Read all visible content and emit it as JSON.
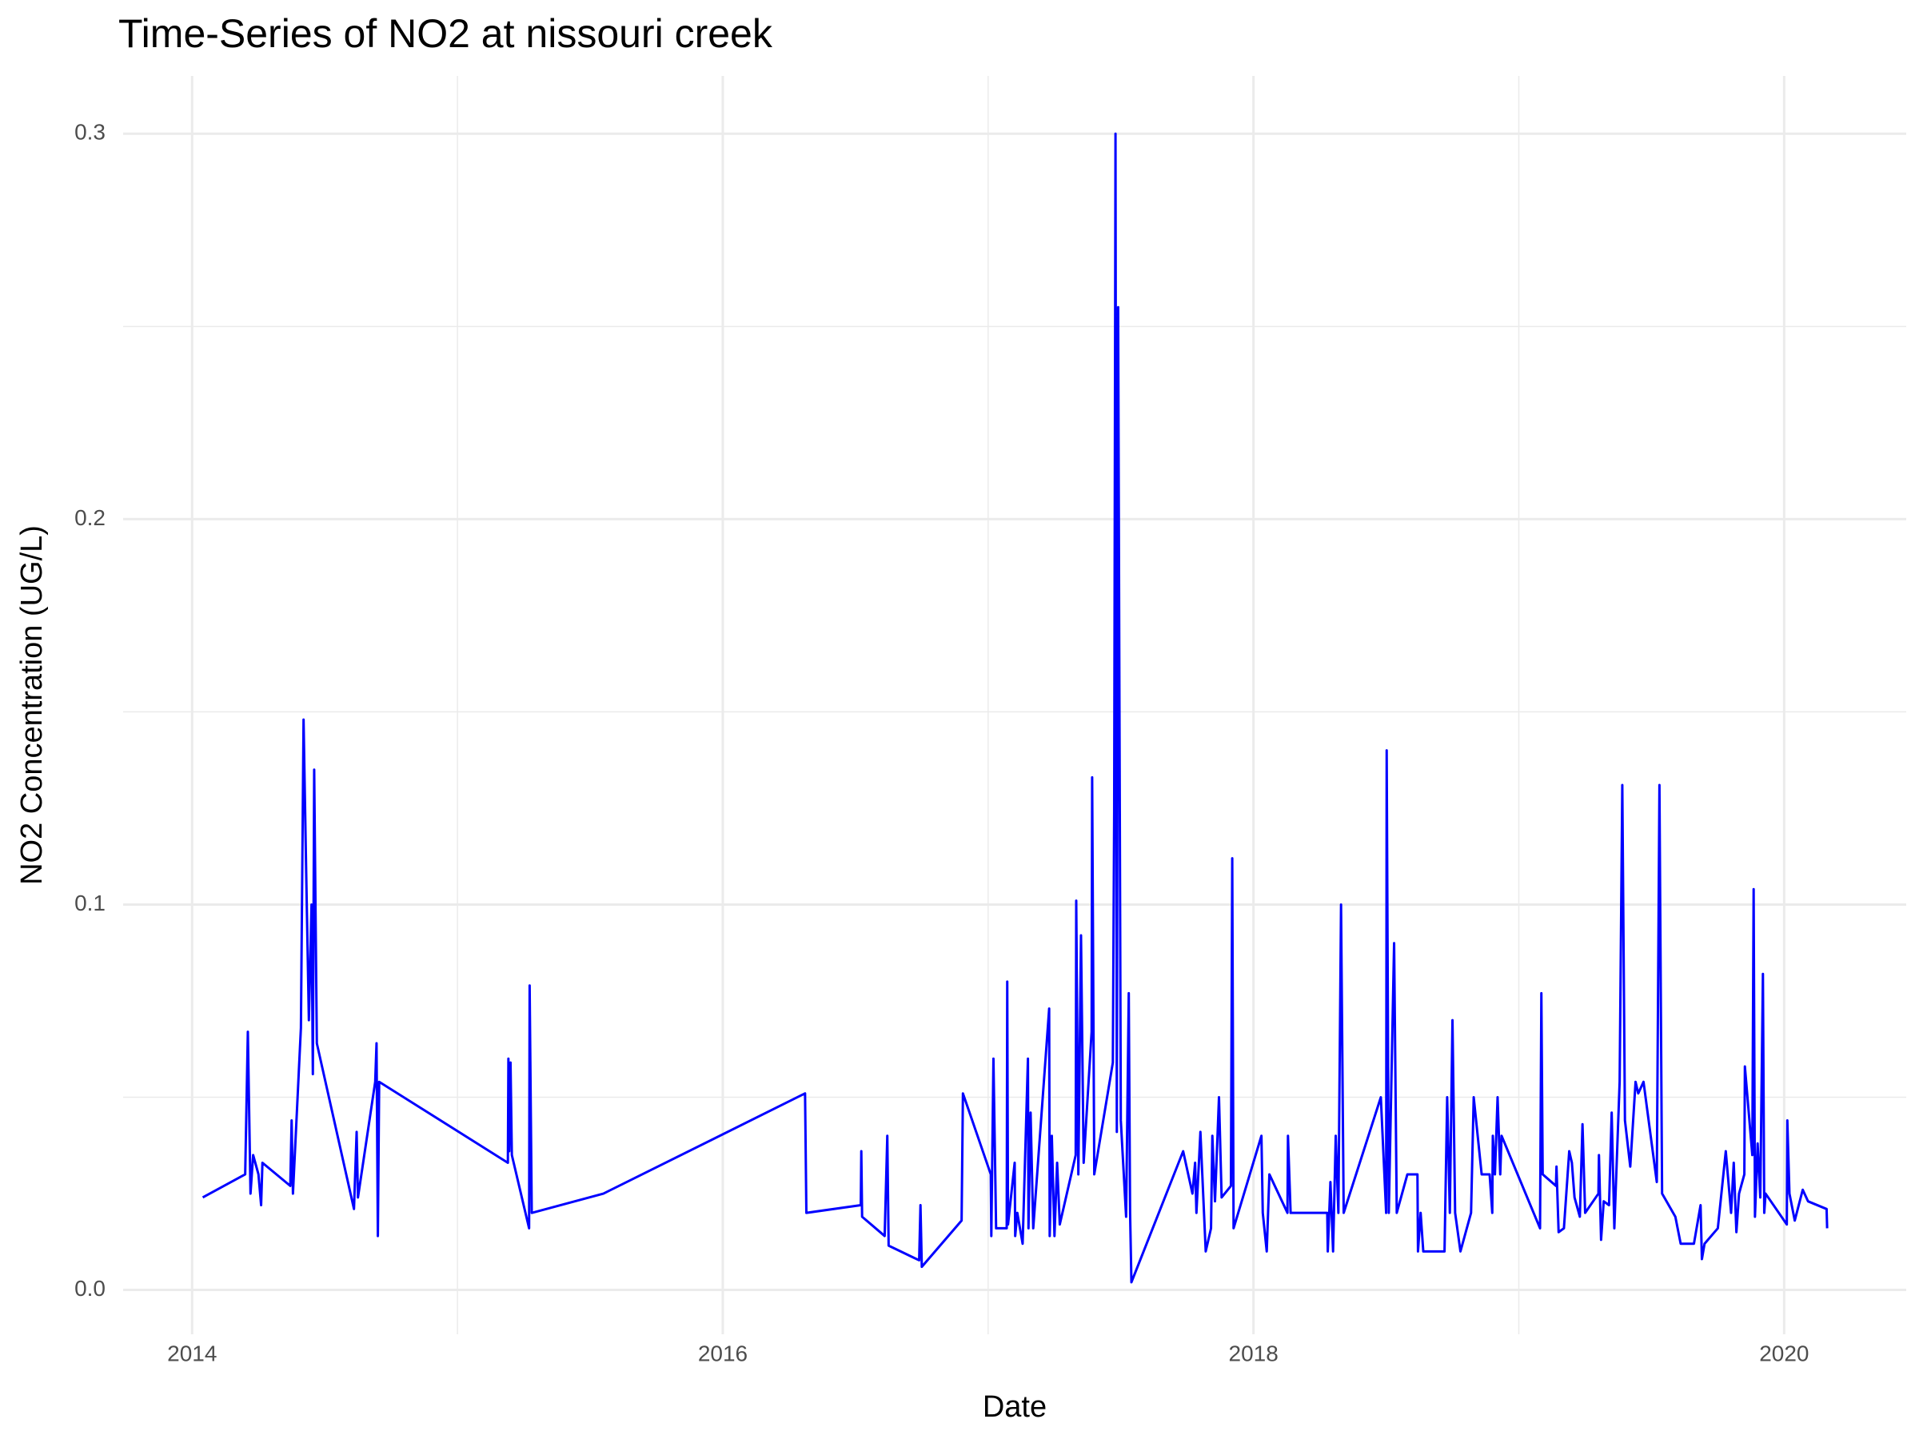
{
  "chart_data": {
    "type": "line",
    "title": "Time-Series of NO2 at nissouri creek",
    "x_label": "Date",
    "y_label": "NO2 Concentration (UG/L)",
    "xlim": [
      2013.74,
      2020.46
    ],
    "ylim": [
      -0.0115,
      0.315
    ],
    "xticks": [
      2014,
      2016,
      2018,
      2020
    ],
    "x_minor_ticks": [
      2015,
      2017,
      2019
    ],
    "yticks": [
      {
        "value": 0,
        "label": "0.0"
      },
      0.1,
      0.2,
      0.3
    ],
    "y_minor_ticks": [
      0.05,
      0.15,
      0.25
    ],
    "grid": true,
    "series": [
      {
        "color": "#0000ff",
        "x": [
          2014.04,
          2014.2,
          2014.21,
          2014.22,
          2014.23,
          2014.25,
          2014.26,
          2014.265,
          2014.37,
          2014.375,
          2014.38,
          2014.41,
          2014.42,
          2014.43,
          2014.44,
          2014.45,
          2014.455,
          2014.46,
          2014.47,
          2014.61,
          2014.62,
          2014.625,
          2014.69,
          2014.695,
          2014.7,
          2014.705,
          2015.19,
          2015.192,
          2015.195,
          2015.2,
          2015.205,
          2015.27,
          2015.272,
          2015.28,
          2015.55,
          2016.31,
          2016.315,
          2016.52,
          2016.522,
          2016.525,
          2016.61,
          2016.62,
          2016.625,
          2016.74,
          2016.745,
          2016.75,
          2016.9,
          2016.905,
          2017.01,
          2017.012,
          2017.02,
          2017.03,
          2017.07,
          2017.072,
          2017.075,
          2017.1,
          2017.102,
          2017.11,
          2017.13,
          2017.15,
          2017.152,
          2017.16,
          2017.17,
          2017.23,
          2017.232,
          2017.24,
          2017.25,
          2017.26,
          2017.27,
          2017.33,
          2017.332,
          2017.34,
          2017.35,
          2017.36,
          2017.39,
          2017.392,
          2017.4,
          2017.47,
          2017.475,
          2017.48,
          2017.485,
          2017.49,
          2017.5,
          2017.52,
          2017.53,
          2017.535,
          2017.54,
          2017.735,
          2017.77,
          2017.78,
          2017.785,
          2017.8,
          2017.82,
          2017.84,
          2017.845,
          2017.855,
          2017.87,
          2017.88,
          2017.915,
          2017.92,
          2017.925,
          2018.03,
          2018.035,
          2018.05,
          2018.06,
          2018.128,
          2018.13,
          2018.14,
          2018.278,
          2018.28,
          2018.29,
          2018.3,
          2018.31,
          2018.32,
          2018.33,
          2018.34,
          2018.48,
          2018.5,
          2018.502,
          2018.51,
          2018.53,
          2018.54,
          2018.58,
          2018.618,
          2018.62,
          2018.63,
          2018.64,
          2018.72,
          2018.73,
          2018.74,
          2018.75,
          2018.76,
          2018.78,
          2018.82,
          2018.83,
          2018.86,
          2018.89,
          2018.9,
          2018.902,
          2018.91,
          2018.92,
          2018.93,
          2018.935,
          2019.08,
          2019.085,
          2019.09,
          2019.14,
          2019.142,
          2019.15,
          2019.17,
          2019.19,
          2019.2,
          2019.21,
          2019.23,
          2019.24,
          2019.25,
          2019.3,
          2019.302,
          2019.31,
          2019.32,
          2019.34,
          2019.35,
          2019.36,
          2019.38,
          2019.39,
          2019.4,
          2019.42,
          2019.44,
          2019.45,
          2019.47,
          2019.52,
          2019.53,
          2019.54,
          2019.59,
          2019.61,
          2019.66,
          2019.685,
          2019.69,
          2019.7,
          2019.75,
          2019.78,
          2019.8,
          2019.81,
          2019.82,
          2019.83,
          2019.85,
          2019.852,
          2019.88,
          2019.885,
          2019.89,
          2019.9,
          2019.91,
          2019.92,
          2019.925,
          2019.93,
          2020.01,
          2020.012,
          2020.02,
          2020.04,
          2020.07,
          2020.09,
          2020.16,
          2020.162
        ],
        "values": [
          0.024,
          0.03,
          0.067,
          0.025,
          0.035,
          0.03,
          0.022,
          0.033,
          0.027,
          0.044,
          0.025,
          0.068,
          0.148,
          0.108,
          0.07,
          0.1,
          0.056,
          0.135,
          0.064,
          0.021,
          0.041,
          0.024,
          0.054,
          0.064,
          0.014,
          0.054,
          0.033,
          0.06,
          0.036,
          0.059,
          0.035,
          0.016,
          0.079,
          0.02,
          0.025,
          0.051,
          0.02,
          0.022,
          0.036,
          0.019,
          0.014,
          0.04,
          0.0115,
          0.0077,
          0.022,
          0.006,
          0.018,
          0.051,
          0.03,
          0.014,
          0.06,
          0.016,
          0.016,
          0.08,
          0.017,
          0.033,
          0.014,
          0.02,
          0.012,
          0.06,
          0.016,
          0.046,
          0.016,
          0.073,
          0.014,
          0.04,
          0.014,
          0.033,
          0.017,
          0.035,
          0.101,
          0.03,
          0.092,
          0.033,
          0.067,
          0.133,
          0.03,
          0.059,
          0.124,
          0.3,
          0.041,
          0.255,
          0.044,
          0.019,
          0.077,
          0.02,
          0.002,
          0.036,
          0.025,
          0.033,
          0.02,
          0.041,
          0.01,
          0.016,
          0.04,
          0.023,
          0.05,
          0.024,
          0.027,
          0.112,
          0.016,
          0.04,
          0.02,
          0.01,
          0.03,
          0.02,
          0.04,
          0.02,
          0.02,
          0.01,
          0.028,
          0.01,
          0.04,
          0.02,
          0.1,
          0.02,
          0.05,
          0.02,
          0.14,
          0.02,
          0.09,
          0.02,
          0.03,
          0.03,
          0.01,
          0.02,
          0.01,
          0.01,
          0.05,
          0.02,
          0.07,
          0.02,
          0.01,
          0.02,
          0.05,
          0.03,
          0.03,
          0.02,
          0.04,
          0.03,
          0.05,
          0.03,
          0.04,
          0.016,
          0.077,
          0.03,
          0.027,
          0.032,
          0.015,
          0.016,
          0.036,
          0.033,
          0.024,
          0.019,
          0.043,
          0.02,
          0.025,
          0.035,
          0.013,
          0.023,
          0.022,
          0.046,
          0.016,
          0.054,
          0.131,
          0.044,
          0.032,
          0.054,
          0.051,
          0.054,
          0.028,
          0.131,
          0.025,
          0.019,
          0.012,
          0.012,
          0.022,
          0.008,
          0.012,
          0.016,
          0.036,
          0.02,
          0.033,
          0.015,
          0.025,
          0.03,
          0.058,
          0.035,
          0.104,
          0.019,
          0.038,
          0.024,
          0.082,
          0.02,
          0.025,
          0.017,
          0.044,
          0.025,
          0.018,
          0.026,
          0.023,
          0.021,
          0.016
        ]
      }
    ]
  }
}
